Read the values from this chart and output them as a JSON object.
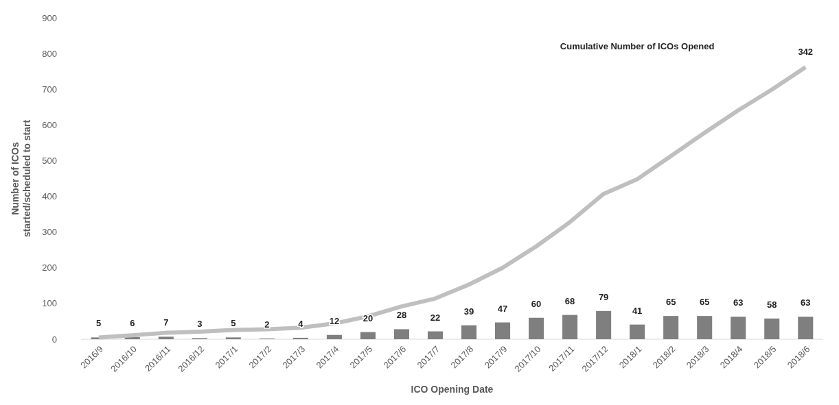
{
  "chart_data": {
    "type": "bar",
    "xlabel": "ICO Opening Date",
    "ylabel": "Number of ICOs started/scheduled to start",
    "categories": [
      "2016/9",
      "2016/10",
      "2016/11",
      "2016/12",
      "2017/1",
      "2017/2",
      "2017/3",
      "2017/4",
      "2017/5",
      "2017/6",
      "2017/7",
      "2017/8",
      "2017/9",
      "2017/10",
      "2017/11",
      "2017/12",
      "2018/1",
      "2018/2",
      "2018/3",
      "2018/4",
      "2018/5",
      "2018/6"
    ],
    "ylim": [
      0,
      900
    ],
    "yticks": [
      0,
      100,
      200,
      300,
      400,
      500,
      600,
      700,
      800,
      900
    ],
    "grid": false,
    "legend": false,
    "annotations": [
      "342"
    ],
    "series": [
      {
        "color": "#7f7f7f",
        "values": [
          5,
          6,
          7,
          3,
          5,
          2,
          4,
          12,
          20,
          28,
          22,
          39,
          47,
          60,
          68,
          79,
          41,
          65,
          65,
          63,
          58,
          63
        ],
        "value_labels": [
          "5",
          "6",
          "7",
          "3",
          "5",
          "2",
          "4",
          "12",
          "20",
          "28",
          "22",
          "39",
          "47",
          "60",
          "68",
          "79",
          "41",
          "65",
          "65",
          "63",
          "58",
          "63"
        ]
      },
      {
        "type": "line",
        "name": "Cumulative Number of ICOs Opened",
        "color": "#bfbfbf",
        "values": [
          5,
          11,
          18,
          21,
          26,
          28,
          32,
          44,
          64,
          92,
          114,
          153,
          200,
          260,
          328,
          407,
          448,
          513,
          578,
          641,
          699,
          762
        ]
      }
    ]
  }
}
